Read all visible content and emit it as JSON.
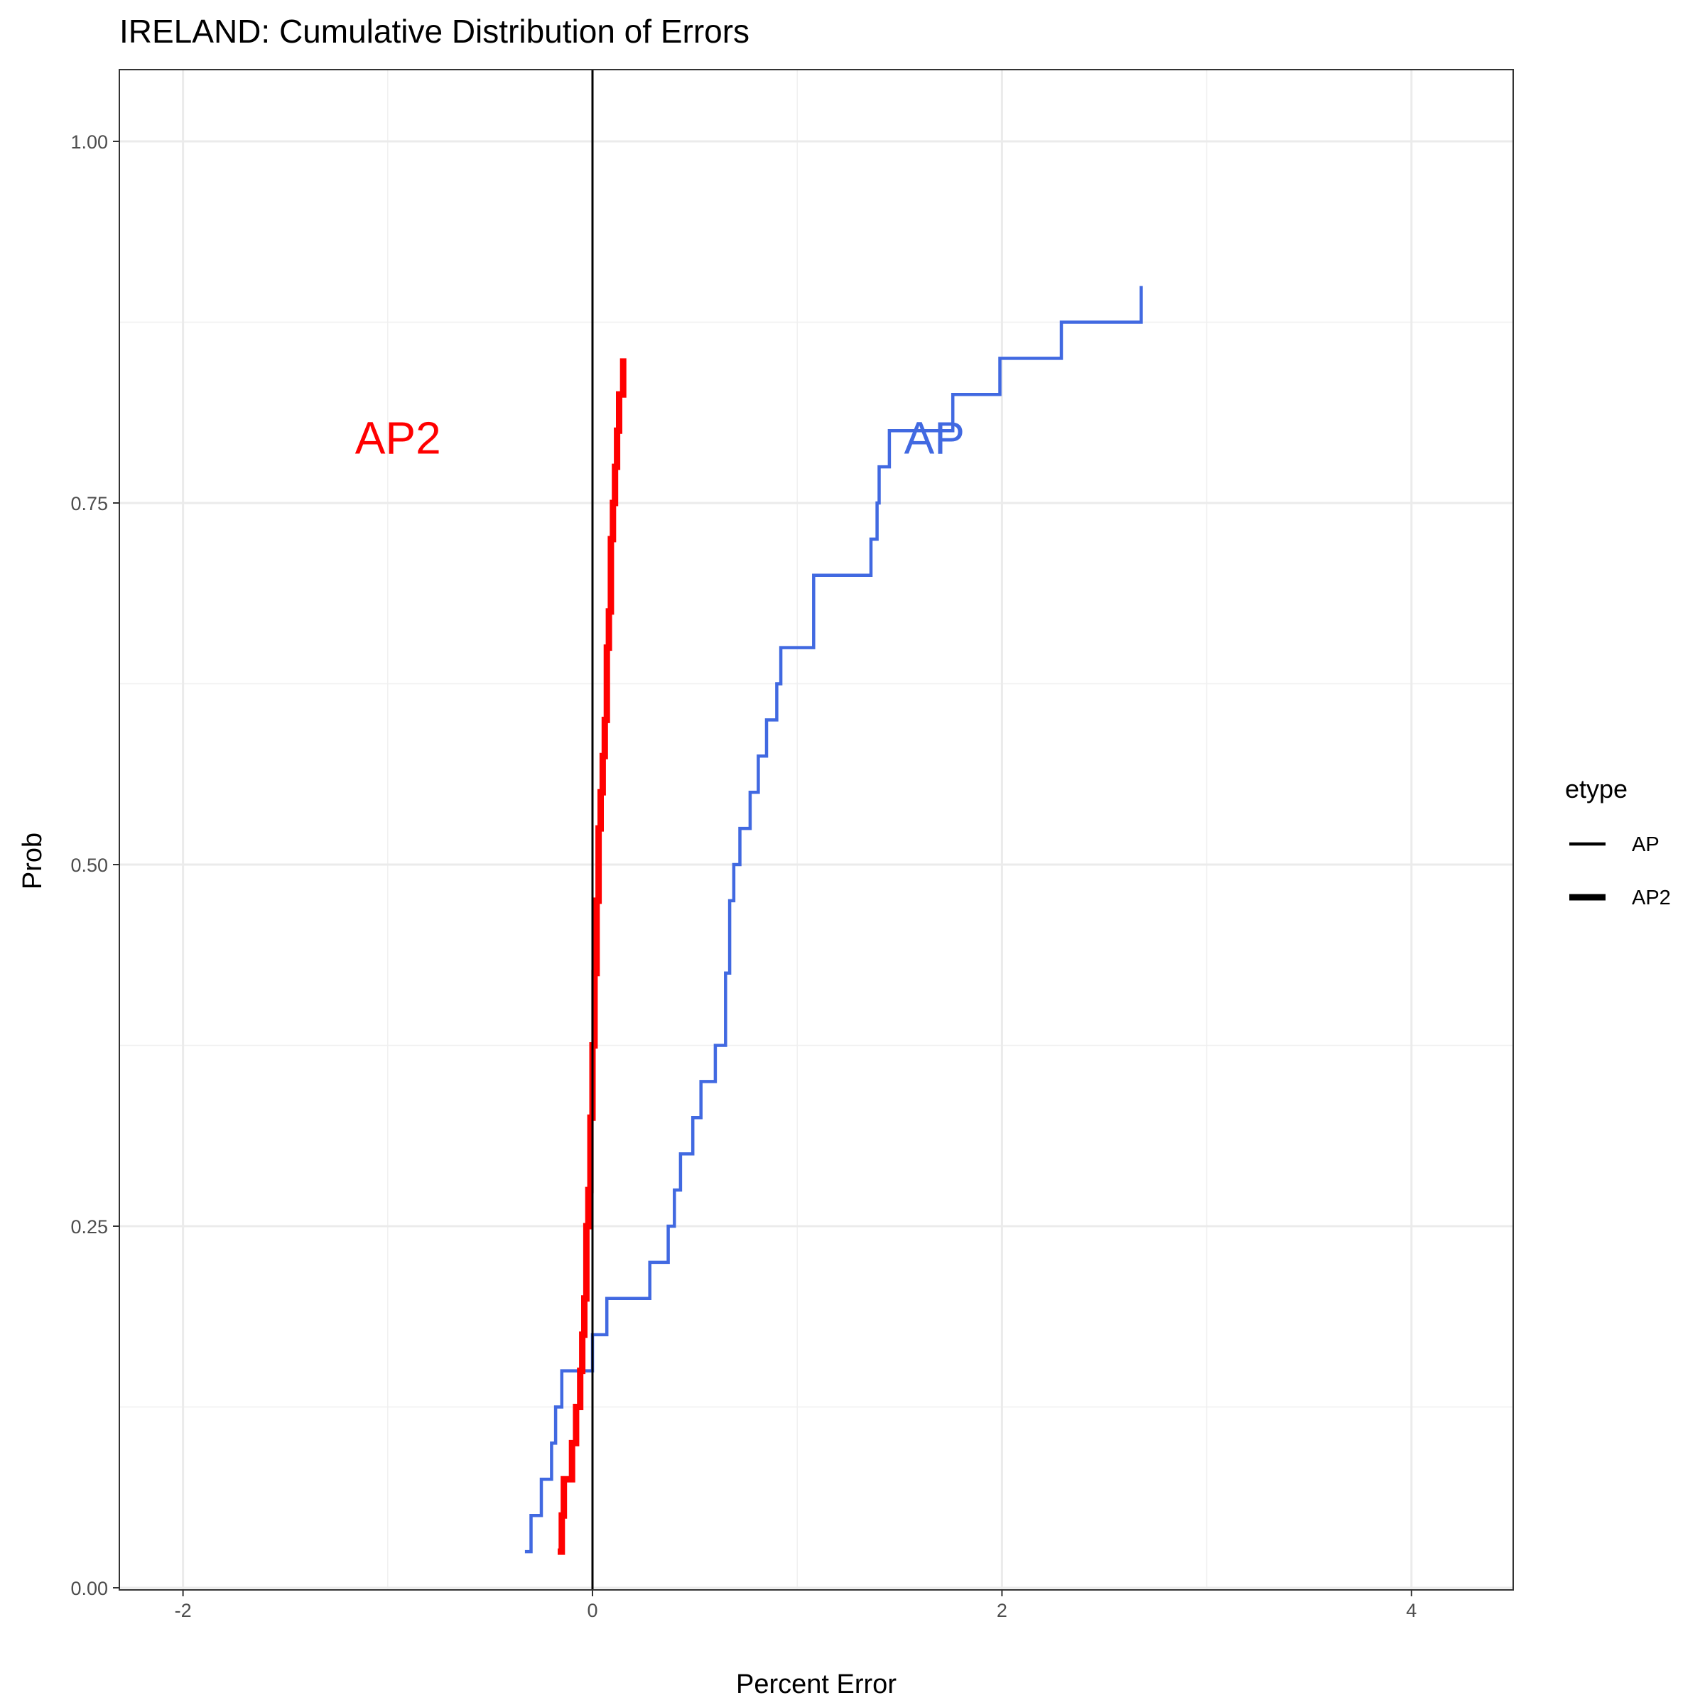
{
  "chart_data": {
    "type": "line",
    "step": true,
    "title": "IRELAND: Cumulative Distribution of Errors",
    "xlabel": "Percent Error",
    "ylabel": "Prob",
    "xlim": [
      -2.3,
      4.5
    ],
    "ylim": [
      -0.02,
      1.05
    ],
    "x_ticks": [
      -2,
      0,
      2,
      4
    ],
    "x_tick_labels": [
      "-2",
      "0",
      "2",
      "4"
    ],
    "y_ticks": [
      0,
      0.25,
      0.5,
      0.75,
      1
    ],
    "y_tick_labels": [
      "0.00",
      "0.25",
      "0.50",
      "0.75",
      "1.00"
    ],
    "x_minor_ticks": [
      -1,
      1,
      3
    ],
    "y_minor_ticks": [
      0.125,
      0.375,
      0.625,
      0.875
    ],
    "grid": true,
    "vline": 0,
    "legend": {
      "title": "etype",
      "position": "right",
      "entries": [
        "AP",
        "AP2"
      ]
    },
    "annotations": [
      {
        "text": "AP2",
        "x": -0.95,
        "y": 0.795,
        "color": "#ff0000"
      },
      {
        "text": "AP",
        "x": 1.67,
        "y": 0.795,
        "color": "#4169e1"
      }
    ],
    "series": [
      {
        "name": "AP",
        "color": "#4169e1",
        "line": "thin",
        "x": [
          -0.33,
          -0.3,
          -0.25,
          -0.2,
          -0.18,
          -0.15,
          0.0,
          0.07,
          0.28,
          0.37,
          0.4,
          0.43,
          0.49,
          0.53,
          0.6,
          0.65,
          0.65,
          0.67,
          0.67,
          0.69,
          0.72,
          0.77,
          0.81,
          0.85,
          0.9,
          0.92,
          1.08,
          1.08,
          1.36,
          1.39,
          1.4,
          1.45,
          1.76,
          1.99,
          2.29,
          2.68
        ],
        "y": [
          0.025,
          0.05,
          0.075,
          0.1,
          0.125,
          0.15,
          0.175,
          0.2,
          0.225,
          0.25,
          0.275,
          0.3,
          0.325,
          0.35,
          0.375,
          0.4,
          0.425,
          0.45,
          0.475,
          0.5,
          0.525,
          0.55,
          0.575,
          0.6,
          0.625,
          0.65,
          0.675,
          0.7,
          0.725,
          0.75,
          0.775,
          0.8,
          0.825,
          0.85,
          0.875,
          0.9
        ]
      },
      {
        "name": "AP2",
        "color": "#ff0000",
        "line": "thick",
        "x": [
          -0.17,
          -0.15,
          -0.14,
          -0.1,
          -0.08,
          -0.06,
          -0.05,
          -0.04,
          -0.03,
          -0.03,
          -0.02,
          -0.01,
          -0.01,
          0.0,
          0.0,
          0.01,
          0.01,
          0.02,
          0.02,
          0.03,
          0.03,
          0.04,
          0.05,
          0.06,
          0.07,
          0.07,
          0.08,
          0.09,
          0.09,
          0.1,
          0.11,
          0.12,
          0.13,
          0.15
        ],
        "y": [
          0.025,
          0.05,
          0.075,
          0.1,
          0.125,
          0.15,
          0.175,
          0.2,
          0.225,
          0.25,
          0.275,
          0.3,
          0.325,
          0.35,
          0.375,
          0.4,
          0.425,
          0.45,
          0.475,
          0.5,
          0.525,
          0.55,
          0.575,
          0.6,
          0.625,
          0.65,
          0.675,
          0.7,
          0.725,
          0.75,
          0.775,
          0.8,
          0.825,
          0.85
        ]
      }
    ]
  }
}
